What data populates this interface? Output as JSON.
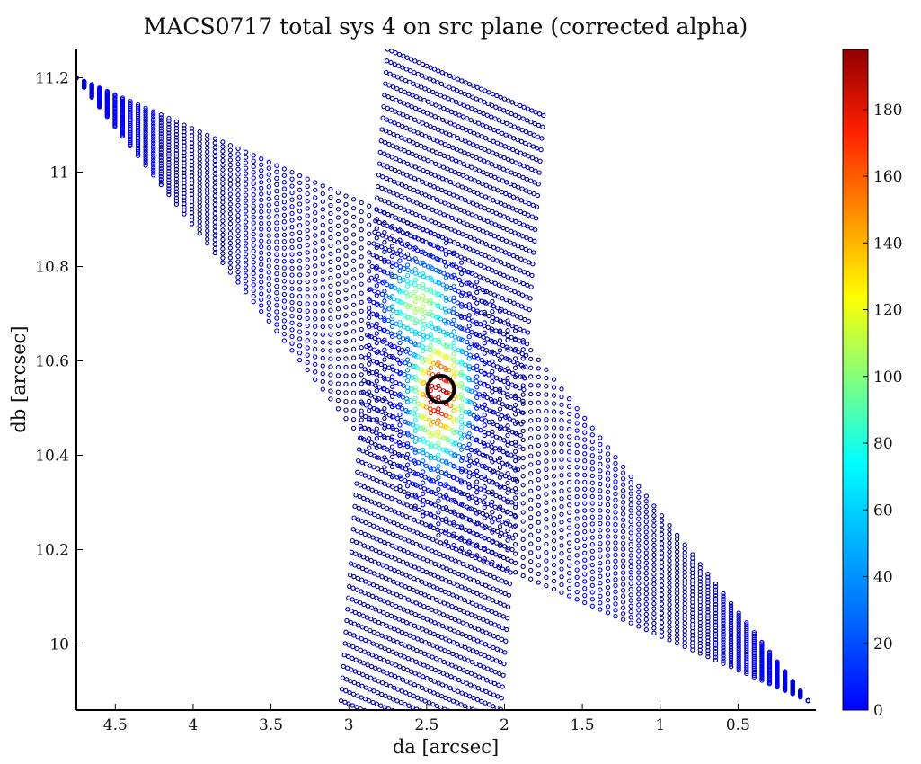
{
  "chart_data": {
    "type": "scatter",
    "title": "MACS0717 total sys 4 on src plane (corrected alpha)",
    "xlabel": "da [arcsec]",
    "ylabel": "db [arcsec]",
    "xlim": [
      4.75,
      0.0
    ],
    "ylim": [
      9.86,
      11.26
    ],
    "x_reversed": true,
    "x_ticks": [
      "4.5",
      "4",
      "3.5",
      "3",
      "2.5",
      "2",
      "1.5",
      "1",
      "0.5"
    ],
    "x_tick_values": [
      4.5,
      4.0,
      3.5,
      3.0,
      2.5,
      2.0,
      1.5,
      1.0,
      0.5
    ],
    "y_ticks": [
      "10",
      "10.2",
      "10.4",
      "10.6",
      "10.8",
      "11",
      "11.2"
    ],
    "y_tick_values": [
      10.0,
      10.2,
      10.4,
      10.6,
      10.8,
      11.0,
      11.2
    ],
    "colorbar": {
      "min": 0,
      "max": 198,
      "ticks": [
        "0",
        "20",
        "40",
        "60",
        "80",
        "100",
        "120",
        "140",
        "160",
        "180"
      ],
      "tick_values": [
        0,
        20,
        40,
        60,
        80,
        100,
        120,
        140,
        160,
        180
      ],
      "colormap": "jet"
    },
    "regions": [
      {
        "shape": "parallelogram",
        "corners": [
          [
            4.75,
            11.2
          ],
          [
            2.4,
            10.86
          ],
          [
            0.05,
            9.88
          ],
          [
            2.4,
            10.22
          ]
        ],
        "base_value": 12
      },
      {
        "shape": "slanted-band",
        "x_left_at_top": 2.75,
        "x_right_at_top": 1.75,
        "x_left_at_bottom": 3.05,
        "x_right_at_bottom": 2.05,
        "y_top": 11.26,
        "y_bottom": 9.88,
        "base_value": 10
      }
    ],
    "peak": {
      "x": 2.42,
      "y": 10.53,
      "value": 190
    },
    "marker": {
      "type": "circle",
      "x": 2.41,
      "y": 10.54,
      "color": "#000000"
    },
    "colors": {
      "axis": "#000000",
      "marker": "#000000"
    }
  }
}
